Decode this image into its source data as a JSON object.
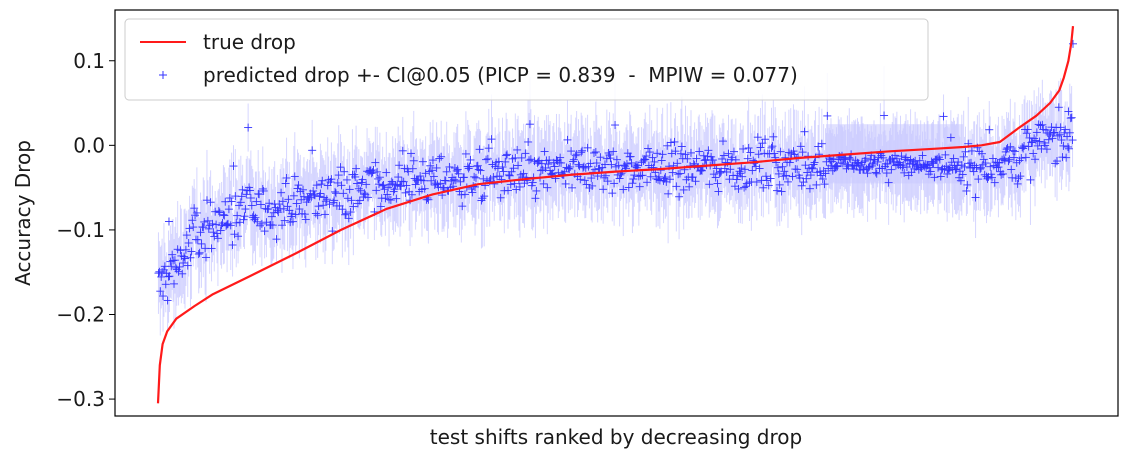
{
  "chart_data": {
    "type": "scatter",
    "title": "",
    "xlabel": "test shifts ranked by decreasing drop",
    "ylabel": "Accuracy Drop",
    "xlim": [
      0,
      1000
    ],
    "ylim": [
      -0.32,
      0.16
    ],
    "x_ticks_shown": false,
    "y_ticks": [
      {
        "value": 0.1,
        "label": "0.1"
      },
      {
        "value": 0.0,
        "label": "0.0"
      },
      {
        "value": -0.1,
        "label": "−0.1"
      },
      {
        "value": -0.2,
        "label": "−0.2"
      },
      {
        "value": -0.3,
        "label": "−0.3"
      }
    ],
    "grid": false,
    "legend": {
      "placement": "top-left",
      "entries": [
        {
          "label": "true drop",
          "marker": "line",
          "color": "#ff1a1a"
        },
        {
          "label": "predicted drop +- CI@0.05 (PICP = 0.839  -  MPIW = 0.077)",
          "marker": "plus",
          "color": "#3333ff"
        }
      ]
    },
    "n_points": 1000,
    "series": [
      {
        "name": "true drop",
        "kind": "line",
        "color": "#ff1a1a",
        "x": [
          0,
          2,
          5,
          10,
          20,
          40,
          60,
          100,
          150,
          200,
          250,
          300,
          350,
          400,
          450,
          500,
          550,
          600,
          650,
          700,
          750,
          800,
          850,
          880,
          900,
          920,
          940,
          960,
          975,
          985,
          990,
          995,
          998,
          1000
        ],
        "y": [
          -0.305,
          -0.26,
          -0.235,
          -0.22,
          -0.205,
          -0.19,
          -0.176,
          -0.155,
          -0.128,
          -0.1,
          -0.075,
          -0.058,
          -0.046,
          -0.04,
          -0.035,
          -0.031,
          -0.028,
          -0.024,
          -0.02,
          -0.015,
          -0.011,
          -0.007,
          -0.004,
          -0.002,
          0.0,
          0.004,
          0.02,
          0.035,
          0.05,
          0.065,
          0.08,
          0.1,
          0.12,
          0.141
        ]
      },
      {
        "name": "predicted drop +- CI@0.05 (PICP = 0.839  -  MPIW = 0.077)",
        "kind": "scatter-with-ci",
        "color": "#3333ff",
        "ci_color": "#c8c8ff",
        "trend": {
          "x": [
            0,
            20,
            60,
            120,
            200,
            300,
            400,
            500,
            600,
            700,
            800,
            880,
            920,
            940,
            960,
            980,
            1000
          ],
          "y": [
            -0.17,
            -0.14,
            -0.09,
            -0.075,
            -0.055,
            -0.04,
            -0.033,
            -0.028,
            -0.025,
            -0.023,
            -0.022,
            -0.025,
            -0.02,
            -0.015,
            0.0,
            0.01,
            0.015
          ]
        },
        "spread": 0.035,
        "ci_halfwidth": 0.04,
        "flat_band": {
          "x_range": [
            730,
            880
          ],
          "y": -0.005,
          "lower": -0.045,
          "upper": 0.025
        },
        "notable_points": [
          {
            "x": 1000,
            "y": 0.12
          },
          {
            "x": 995,
            "y": 0.04
          },
          {
            "x": 12,
            "y": -0.09
          }
        ]
      }
    ]
  }
}
